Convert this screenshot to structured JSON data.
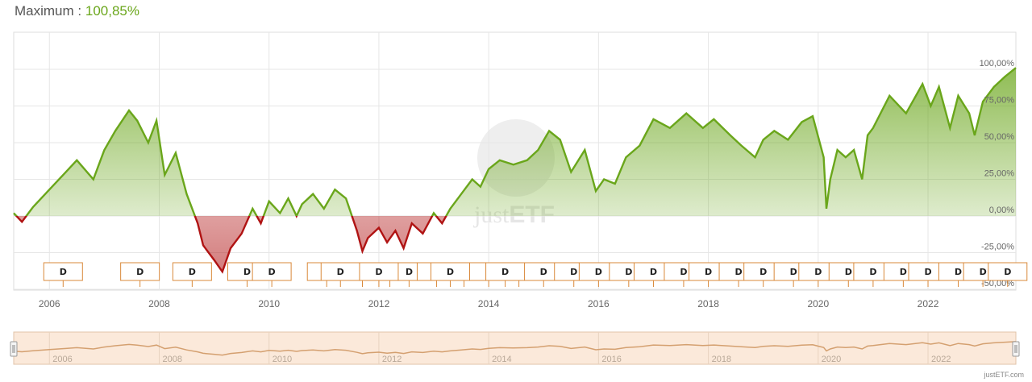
{
  "header": {
    "label": "Maximum :",
    "value": "100,85%"
  },
  "watermark": {
    "brand_plain": "just",
    "brand_bold": "ETF"
  },
  "credit": "justETF.com",
  "colors": {
    "positive": "#6aa61b",
    "negative": "#b01313",
    "grid": "#e6e6e6",
    "navigator": "#d4a070",
    "marker": "#d9893a"
  },
  "chart_data": {
    "type": "area",
    "title": "",
    "xlabel": "",
    "ylabel": "",
    "xlim": [
      2005.35,
      2023.6
    ],
    "ylim": [
      -50,
      110
    ],
    "y_ticks": [
      {
        "value": 100,
        "label": "100,00%"
      },
      {
        "value": 75,
        "label": "75,00%"
      },
      {
        "value": 50,
        "label": "50,00%"
      },
      {
        "value": 25,
        "label": "25,00%"
      },
      {
        "value": 0,
        "label": "0,00%"
      },
      {
        "value": -25,
        "label": "-25,00%"
      },
      {
        "value": -50,
        "label": "-50,00%"
      }
    ],
    "x_ticks": [
      "2006",
      "2008",
      "2010",
      "2012",
      "2014",
      "2016",
      "2018",
      "2020",
      "2022"
    ],
    "grid": true,
    "series": [
      {
        "x": [
          2005.35,
          2005.5,
          2005.7,
          2006.0,
          2006.3,
          2006.5,
          2006.8,
          2007.0,
          2007.2,
          2007.45,
          2007.6,
          2007.8,
          2007.95,
          2008.1,
          2008.3,
          2008.5,
          2008.7,
          2008.8,
          2009.0,
          2009.15,
          2009.3,
          2009.5,
          2009.7,
          2009.85,
          2010.0,
          2010.2,
          2010.35,
          2010.5,
          2010.6,
          2010.8,
          2011.0,
          2011.2,
          2011.4,
          2011.6,
          2011.7,
          2011.8,
          2012.0,
          2012.15,
          2012.3,
          2012.45,
          2012.6,
          2012.8,
          2013.0,
          2013.15,
          2013.3,
          2013.5,
          2013.7,
          2013.85,
          2014.0,
          2014.2,
          2014.45,
          2014.7,
          2014.9,
          2015.1,
          2015.3,
          2015.5,
          2015.75,
          2015.95,
          2016.1,
          2016.3,
          2016.5,
          2016.75,
          2017.0,
          2017.3,
          2017.6,
          2017.9,
          2018.1,
          2018.4,
          2018.6,
          2018.85,
          2019.0,
          2019.2,
          2019.45,
          2019.7,
          2019.9,
          2020.1,
          2020.15,
          2020.22,
          2020.35,
          2020.5,
          2020.65,
          2020.8,
          2020.9,
          2021.0,
          2021.3,
          2021.6,
          2021.9,
          2022.05,
          2022.2,
          2022.4,
          2022.55,
          2022.75,
          2022.85,
          2023.0,
          2023.2,
          2023.4,
          2023.6
        ],
        "y": [
          2,
          -4,
          6,
          18,
          30,
          38,
          25,
          45,
          58,
          72,
          65,
          50,
          65,
          28,
          43,
          15,
          -5,
          -20,
          -30,
          -38,
          -22,
          -12,
          5,
          -5,
          10,
          2,
          12,
          0,
          8,
          15,
          5,
          18,
          12,
          -10,
          -24,
          -15,
          -8,
          -18,
          -10,
          -22,
          -5,
          -12,
          2,
          -5,
          5,
          15,
          25,
          20,
          32,
          38,
          35,
          38,
          45,
          58,
          52,
          30,
          45,
          17,
          25,
          22,
          40,
          48,
          66,
          60,
          70,
          60,
          66,
          55,
          48,
          40,
          52,
          58,
          52,
          64,
          68,
          40,
          5,
          25,
          45,
          40,
          45,
          25,
          55,
          60,
          82,
          70,
          90,
          75,
          88,
          60,
          82,
          70,
          55,
          78,
          88,
          95,
          101
        ]
      }
    ],
    "dividend_markers": [
      "D",
      "D",
      "D",
      "D",
      "D",
      "D",
      "D",
      "D",
      "D",
      "D",
      "D",
      "D",
      "D",
      "D",
      "D",
      "D",
      "D",
      "D",
      "D",
      "D",
      "D",
      "D",
      "D",
      "D",
      "D",
      "D",
      "D",
      "D",
      "D",
      "D",
      "D",
      "D",
      "D",
      "D",
      "D"
    ],
    "dividend_marker_x": [
      2006.25,
      2007.65,
      2008.6,
      2009.6,
      2011.05,
      2011.7,
      2012.2,
      2012.55,
      2013.05,
      2013.55,
      2014.0,
      2014.55,
      2015.0,
      2015.55,
      2016.0,
      2016.55,
      2017.0,
      2017.55,
      2018.0,
      2018.55,
      2019.0,
      2019.55,
      2020.0,
      2020.55,
      2021.0,
      2021.55,
      2022.0,
      2022.55,
      2023.0,
      2023.45,
      2010.05,
      2011.3,
      2012.0,
      2013.3,
      2014.3
    ],
    "navigator_ticks": [
      "2006",
      "2008",
      "2010",
      "2012",
      "2014",
      "2016",
      "2018",
      "2020",
      "2022"
    ]
  }
}
